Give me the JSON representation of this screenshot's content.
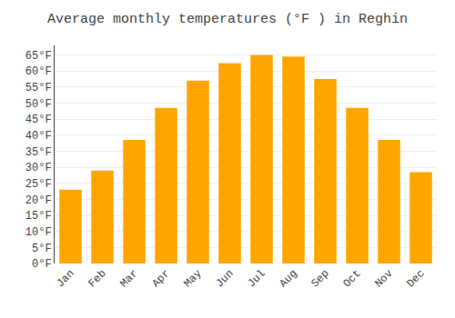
{
  "chart_data": {
    "type": "bar",
    "title": "Average monthly temperatures (°F ) in Reghin",
    "categories": [
      "Jan",
      "Feb",
      "Mar",
      "Apr",
      "May",
      "Jun",
      "Jul",
      "Aug",
      "Sep",
      "Oct",
      "Nov",
      "Dec"
    ],
    "values": [
      23.0,
      29.0,
      38.5,
      48.5,
      57.0,
      62.5,
      65.0,
      64.5,
      57.5,
      48.5,
      38.5,
      28.5
    ],
    "color": "#FFA500",
    "ylim": [
      0,
      68
    ],
    "yticks": [
      {
        "value": 0,
        "label": "0°F"
      },
      {
        "value": 5,
        "label": "5°F"
      },
      {
        "value": 10,
        "label": "10°F"
      },
      {
        "value": 15,
        "label": "15°F"
      },
      {
        "value": 20,
        "label": "20°F"
      },
      {
        "value": 25,
        "label": "25°F"
      },
      {
        "value": 30,
        "label": "30°F"
      },
      {
        "value": 35,
        "label": "35°F"
      },
      {
        "value": 40,
        "label": "40°F"
      },
      {
        "value": 45,
        "label": "45°F"
      },
      {
        "value": 50,
        "label": "50°F"
      },
      {
        "value": 55,
        "label": "55°F"
      },
      {
        "value": 60,
        "label": "60°F"
      },
      {
        "value": 65,
        "label": "65°F"
      }
    ],
    "grid": true
  }
}
